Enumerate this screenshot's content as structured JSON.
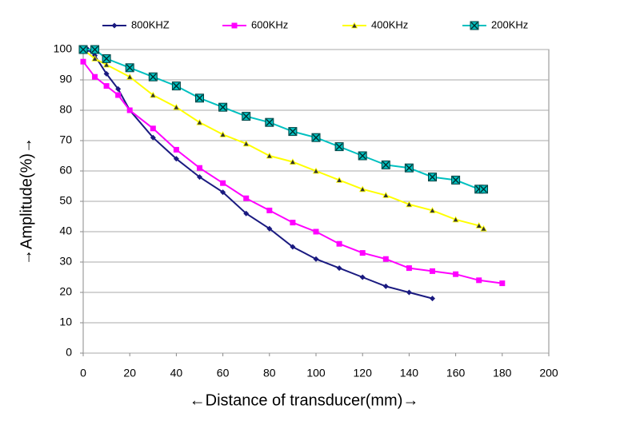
{
  "chart_data": {
    "type": "line",
    "x_label": "←Distance of transducer(mm)→",
    "y_label": "→Amplitude(%)→",
    "xlim": [
      0,
      200
    ],
    "xticks": [
      0,
      20,
      40,
      60,
      80,
      100,
      120,
      140,
      160,
      180,
      200
    ],
    "ylim": [
      0,
      100
    ],
    "yticks": [
      0,
      10,
      20,
      30,
      40,
      50,
      60,
      70,
      80,
      90,
      100
    ],
    "grid": true,
    "legend": "top",
    "series": [
      {
        "name": "800KHZ",
        "color": "#1a1a80",
        "marker": "diamond",
        "x": [
          2,
          5,
          10,
          15,
          20,
          30,
          40,
          50,
          60,
          70,
          80,
          90,
          100,
          110,
          120,
          130,
          140,
          150
        ],
        "values": [
          100,
          98,
          92,
          87,
          80,
          71,
          64,
          58,
          53,
          46,
          41,
          35,
          31,
          28,
          25,
          22,
          20,
          18
        ]
      },
      {
        "name": "600KHz",
        "color": "#ff00ff",
        "marker": "square",
        "x": [
          0,
          5,
          10,
          15,
          20,
          30,
          40,
          50,
          60,
          70,
          80,
          90,
          100,
          110,
          120,
          130,
          140,
          150,
          160,
          170,
          180
        ],
        "values": [
          96,
          91,
          88,
          85,
          80,
          74,
          67,
          61,
          56,
          51,
          47,
          43,
          40,
          36,
          33,
          31,
          28,
          27,
          26,
          24,
          23
        ]
      },
      {
        "name": "400KHz",
        "color": "#ffff00",
        "marker": "triangle",
        "x": [
          0,
          5,
          10,
          20,
          30,
          40,
          50,
          60,
          70,
          80,
          90,
          100,
          110,
          120,
          130,
          140,
          150,
          160,
          170,
          172
        ],
        "values": [
          100,
          97,
          95,
          91,
          85,
          81,
          76,
          72,
          69,
          65,
          63,
          60,
          57,
          54,
          52,
          49,
          47,
          44,
          42,
          41
        ]
      },
      {
        "name": "200KHz",
        "color": "#00c0c0",
        "marker": "xsquare",
        "x": [
          0,
          5,
          10,
          20,
          30,
          40,
          50,
          60,
          70,
          80,
          90,
          100,
          110,
          120,
          130,
          140,
          150,
          160,
          170,
          172
        ],
        "values": [
          100,
          100,
          97,
          94,
          91,
          88,
          84,
          81,
          78,
          76,
          73,
          71,
          68,
          65,
          62,
          61,
          58,
          57,
          54,
          54
        ]
      }
    ]
  }
}
